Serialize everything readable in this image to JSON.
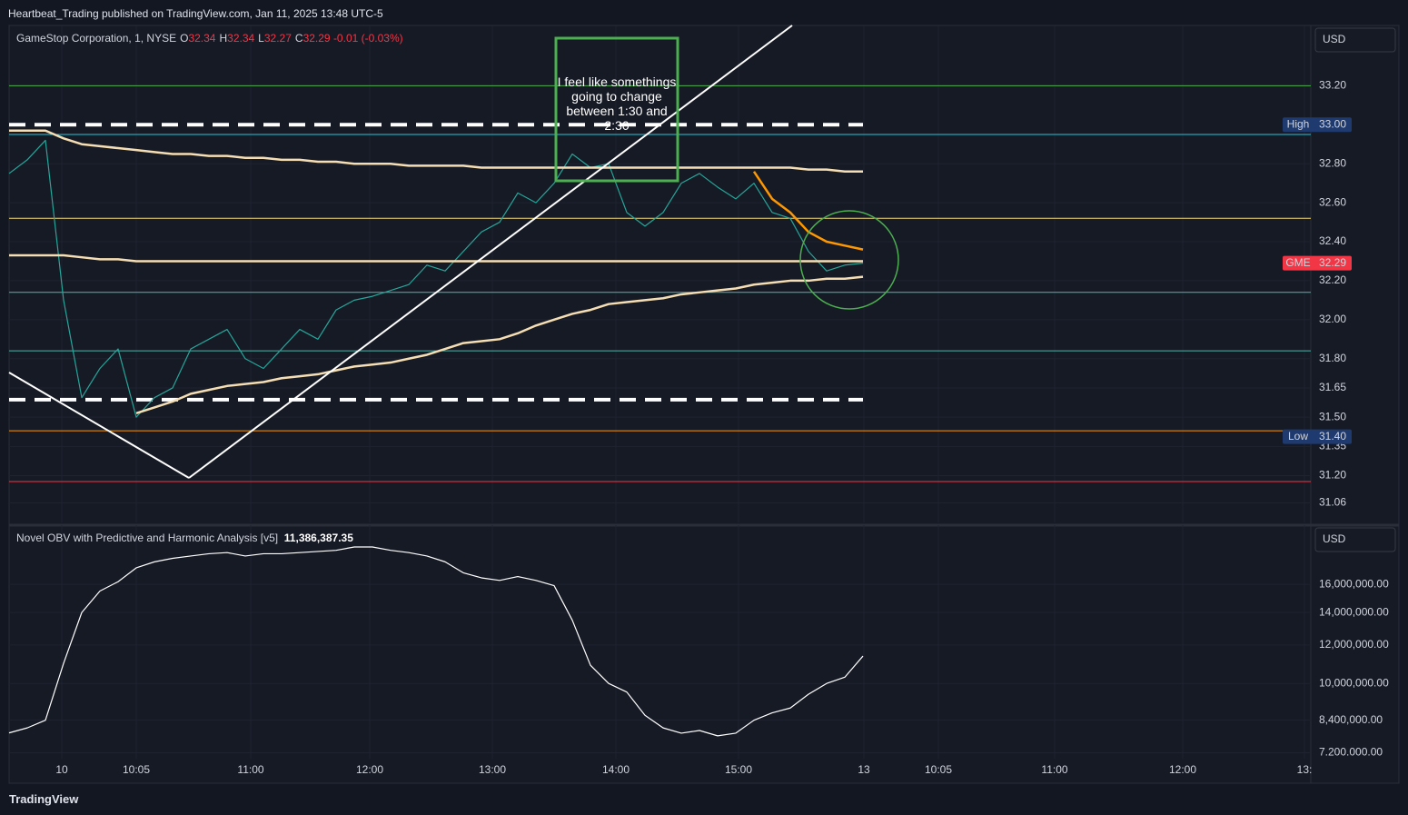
{
  "header": "Heartbeat_Trading published on TradingView.com, Jan 11, 2025 13:48 UTC-5",
  "footer": "TradingView",
  "chart_data": [
    {
      "type": "line",
      "title": "GameStop Corporation, 1, NYSE",
      "ohlc": [
        {
          "key": "O",
          "value": "32.34"
        },
        {
          "key": "H",
          "value": "32.34"
        },
        {
          "key": "L",
          "value": "32.27"
        },
        {
          "key": "C",
          "value": "32.29"
        }
      ],
      "change": "-0.01 (-0.03%)",
      "currency": "USD",
      "annotation": "I feel like somethings going to change between 1:30 and 2:30",
      "ylim": [
        30.96,
        33.5
      ],
      "yticks": [
        {
          "value": 33.2,
          "label": "33.20"
        },
        {
          "value": 32.8,
          "label": "32.80"
        },
        {
          "value": 32.6,
          "label": "32.60"
        },
        {
          "value": 32.4,
          "label": "32.40"
        },
        {
          "value": 32.2,
          "label": "32.20"
        },
        {
          "value": 32,
          "label": "32.00"
        },
        {
          "value": 31.8,
          "label": "31.80"
        },
        {
          "value": 31.65,
          "label": "31.65"
        },
        {
          "value": 31.5,
          "label": "31.50"
        },
        {
          "value": 31.35,
          "label": "31.35"
        },
        {
          "value": 31.2,
          "label": "31.20"
        },
        {
          "value": 31.06,
          "label": "31.06"
        }
      ],
      "grid": true,
      "series": [
        {
          "color": "#26a69a",
          "values": [
            32.75,
            32.82,
            32.92,
            32.1,
            31.6,
            31.75,
            31.85,
            31.5,
            31.6,
            31.65,
            31.85,
            31.9,
            31.95,
            31.8,
            31.75,
            31.85,
            31.95,
            31.9,
            32.05,
            32.1,
            32.12,
            32.15,
            32.18,
            32.28,
            32.25,
            32.35,
            32.45,
            32.5,
            32.65,
            32.6,
            32.7,
            32.85,
            32.78,
            32.8,
            32.55,
            32.48,
            32.55,
            32.7,
            32.75,
            32.68,
            32.62,
            32.7,
            32.55,
            32.52,
            32.35,
            32.25,
            32.28,
            32.29
          ]
        },
        {
          "color": "#f5deb3",
          "values": [
            32.97,
            32.97,
            32.97,
            32.93,
            32.9,
            32.89,
            32.88,
            32.87,
            32.86,
            32.85,
            32.85,
            32.84,
            32.84,
            32.83,
            32.83,
            32.82,
            32.82,
            32.81,
            32.81,
            32.8,
            32.8,
            32.8,
            32.79,
            32.79,
            32.79,
            32.79,
            32.78,
            32.78,
            32.78,
            32.78,
            32.78,
            32.78,
            32.78,
            32.78,
            32.78,
            32.78,
            32.78,
            32.78,
            32.78,
            32.78,
            32.78,
            32.78,
            32.78,
            32.78,
            32.77,
            32.77,
            32.76,
            32.76
          ]
        },
        {
          "color": "#f5deb3",
          "values": [
            32.33,
            32.33,
            32.33,
            32.33,
            32.32,
            32.31,
            32.31,
            32.3,
            32.3,
            32.3,
            32.3,
            32.3,
            32.3,
            32.3,
            32.3,
            32.3,
            32.3,
            32.3,
            32.3,
            32.3,
            32.3,
            32.3,
            32.3,
            32.3,
            32.3,
            32.3,
            32.3,
            32.3,
            32.3,
            32.3,
            32.3,
            32.3,
            32.3,
            32.3,
            32.3,
            32.3,
            32.3,
            32.3,
            32.3,
            32.3,
            32.3,
            32.3,
            32.3,
            32.3,
            32.3,
            32.3,
            32.3,
            32.3
          ]
        },
        {
          "color": "#f5deb3",
          "values": [
            null,
            null,
            null,
            null,
            null,
            null,
            null,
            31.52,
            31.55,
            31.58,
            31.62,
            31.64,
            31.66,
            31.67,
            31.68,
            31.7,
            31.71,
            31.72,
            31.74,
            31.76,
            31.77,
            31.78,
            31.8,
            31.82,
            31.85,
            31.88,
            31.89,
            31.9,
            31.93,
            31.97,
            32.0,
            32.03,
            32.05,
            32.08,
            32.09,
            32.1,
            32.11,
            32.13,
            32.14,
            32.15,
            32.16,
            32.18,
            32.19,
            32.2,
            32.2,
            32.21,
            32.21,
            32.22
          ]
        },
        {
          "color": "#ff9800",
          "values": [
            null,
            null,
            null,
            null,
            null,
            null,
            null,
            null,
            null,
            null,
            null,
            null,
            null,
            null,
            null,
            null,
            null,
            null,
            null,
            null,
            null,
            null,
            null,
            null,
            null,
            null,
            null,
            null,
            null,
            null,
            null,
            null,
            null,
            null,
            null,
            null,
            null,
            null,
            null,
            null,
            null,
            32.76,
            32.62,
            32.55,
            32.45,
            32.4,
            32.38,
            32.36
          ]
        }
      ],
      "levels": [
        {
          "value": 33.2,
          "color": "#4caf50",
          "style": "solid"
        },
        {
          "value": 33.0,
          "color": "#ffffff",
          "style": "dashed"
        },
        {
          "value": 32.95,
          "color": "#26c6da",
          "style": "solid"
        },
        {
          "value": 32.52,
          "color": "#f5d76e",
          "style": "solid"
        },
        {
          "value": 32.14,
          "color": "#4db6ac",
          "style": "solid"
        },
        {
          "value": 31.84,
          "color": "#4db6ac",
          "style": "solid"
        },
        {
          "value": 31.59,
          "color": "#ffffff",
          "style": "dashed"
        },
        {
          "value": 31.43,
          "color": "#ff9800",
          "style": "solid"
        },
        {
          "value": 31.17,
          "color": "#f23645",
          "style": "solid"
        }
      ],
      "badges": [
        {
          "name": "High",
          "value": 33.0,
          "value_label": "33.00",
          "color": "#1f3a6e"
        },
        {
          "name": "GME",
          "value": 32.29,
          "value_label": "32.29",
          "color": "#f23645"
        },
        {
          "name": "Low",
          "value": 31.4,
          "value_label": "31.40",
          "color": "#1f3a6e"
        }
      ]
    },
    {
      "type": "line",
      "title": "Novel OBV with Predictive and Harmonic Analysis [v5]",
      "last_value_label": "11,386,387.35",
      "currency": "USD",
      "log_scale": true,
      "grid": true,
      "ylim": [
        7000000,
        21000000
      ],
      "yticks": [
        {
          "value": 16000000,
          "label": "16,000,000.00"
        },
        {
          "value": 14000000,
          "label": "14,000,000.00"
        },
        {
          "value": 12000000,
          "label": "12,000,000.00"
        },
        {
          "value": 10000000,
          "label": "10,000,000.00"
        },
        {
          "value": 8400000,
          "label": "8,400,000.00"
        },
        {
          "value": 7200000,
          "label": "7.200.000.00"
        }
      ],
      "xlim": [
        0,
        71.65
      ],
      "xticks": [
        {
          "value": 2.9,
          "label": "10"
        },
        {
          "value": 7,
          "label": "10:05"
        },
        {
          "value": 13.3,
          "label": "11:00"
        },
        {
          "value": 19.85,
          "label": "12:00"
        },
        {
          "value": 26.6,
          "label": "13:00"
        },
        {
          "value": 33.4,
          "label": "14:00"
        },
        {
          "value": 40.15,
          "label": "15:00"
        },
        {
          "value": 47.05,
          "label": "13"
        },
        {
          "value": 51.15,
          "label": "10:05"
        },
        {
          "value": 57.55,
          "label": "11:00"
        },
        {
          "value": 64.6,
          "label": "12:00"
        },
        {
          "value": 71.3,
          "label": "13:"
        }
      ],
      "series": [
        {
          "color": "#ffffff",
          "values": [
            7910000,
            8100000,
            8400000,
            11000000,
            14000000,
            15500000,
            16200000,
            17300000,
            17800000,
            18100000,
            18300000,
            18500000,
            18600000,
            18300000,
            18500000,
            18500000,
            18600000,
            18700000,
            18800000,
            19100000,
            19100000,
            18800000,
            18600000,
            18300000,
            17800000,
            16900000,
            16500000,
            16300000,
            16600000,
            16300000,
            15900000,
            13500000,
            10900000,
            10000000,
            9600000,
            8600000,
            8100000,
            7900000,
            8000000,
            7800000,
            7900000,
            8400000,
            8700000,
            8900000,
            9500000,
            10000000,
            10300000,
            11386387.35
          ]
        }
      ]
    }
  ]
}
